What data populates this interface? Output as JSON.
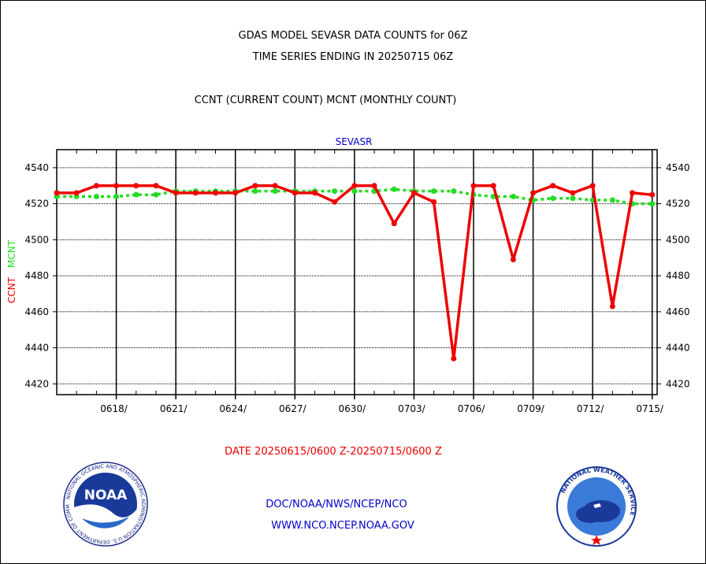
{
  "header": {
    "title_line1": "GDAS MODEL SEVASR DATA COUNTS for 06Z",
    "title_line2": "TIME SERIES ENDING IN 20250715 06Z",
    "subtitle": "CCNT (CURRENT COUNT) MCNT (MONTHLY COUNT)"
  },
  "footer": {
    "date_range": "DATE 20250615/0600 Z-20250715/0600 Z",
    "org_line1": "DOC/NOAA/NWS/NCEP/NCO",
    "org_line2": "WWW.NCO.NCEP.NOAA.GOV",
    "noaa_logo_text": "NOAA",
    "noaa_ring_text": "NATIONAL OCEANIC AND ATMOSPHERIC ADMINISTRATION U.S. DEPARTMENT OF COMMERCE",
    "nws_ring_text": "NATIONAL WEATHER SERVICE"
  },
  "colors": {
    "ccnt": "#ee0000",
    "mcnt": "#22dd22",
    "label_blue": "#0000cc"
  },
  "chart_data": {
    "type": "line",
    "title": "SEVASR",
    "ylabel_parts": [
      "CCNT",
      "MCNT"
    ],
    "ylim": [
      4414,
      4550
    ],
    "yticks": [
      4420,
      4440,
      4460,
      4480,
      4500,
      4520,
      4540
    ],
    "x_range": [
      0,
      30.25
    ],
    "x_ticks": [
      {
        "x": 3,
        "label": "0618/"
      },
      {
        "x": 6,
        "label": "0621/"
      },
      {
        "x": 9,
        "label": "0624/"
      },
      {
        "x": 12,
        "label": "0627/"
      },
      {
        "x": 15,
        "label": "0630/"
      },
      {
        "x": 18,
        "label": "0703/"
      },
      {
        "x": 21,
        "label": "0706/"
      },
      {
        "x": 24,
        "label": "0709/"
      },
      {
        "x": 27,
        "label": "0712/"
      },
      {
        "x": 30,
        "label": "0715/"
      }
    ],
    "grid": true,
    "series": [
      {
        "name": "CCNT",
        "x": [
          0,
          1,
          2,
          3,
          4,
          5,
          6,
          7,
          8,
          9,
          10,
          11,
          12,
          13,
          14,
          15,
          16,
          17,
          18,
          19,
          20,
          21,
          22,
          23,
          24,
          25,
          26,
          27,
          28,
          29,
          30
        ],
        "values": [
          4526,
          4526,
          4530,
          4530,
          4530,
          4530,
          4526,
          4526,
          4526,
          4526,
          4530,
          4530,
          4526,
          4526,
          4521,
          4530,
          4530,
          4509,
          4526,
          4521,
          4434,
          4530,
          4530,
          4489,
          4526,
          4530,
          4526,
          4530,
          4463,
          4526,
          4525
        ]
      },
      {
        "name": "MCNT",
        "x": [
          0,
          1,
          2,
          3,
          4,
          5,
          6,
          7,
          8,
          9,
          10,
          11,
          12,
          13,
          14,
          15,
          16,
          17,
          18,
          19,
          20,
          21,
          22,
          23,
          24,
          25,
          26,
          27,
          28,
          29,
          30
        ],
        "values": [
          4524,
          4524,
          4524,
          4524,
          4525,
          4525,
          4527,
          4527,
          4527,
          4527,
          4527,
          4527,
          4527,
          4527,
          4527,
          4527,
          4527,
          4528,
          4527,
          4527,
          4527,
          4525,
          4524,
          4524,
          4522,
          4523,
          4523,
          4522,
          4522,
          4520,
          4520
        ]
      }
    ]
  }
}
